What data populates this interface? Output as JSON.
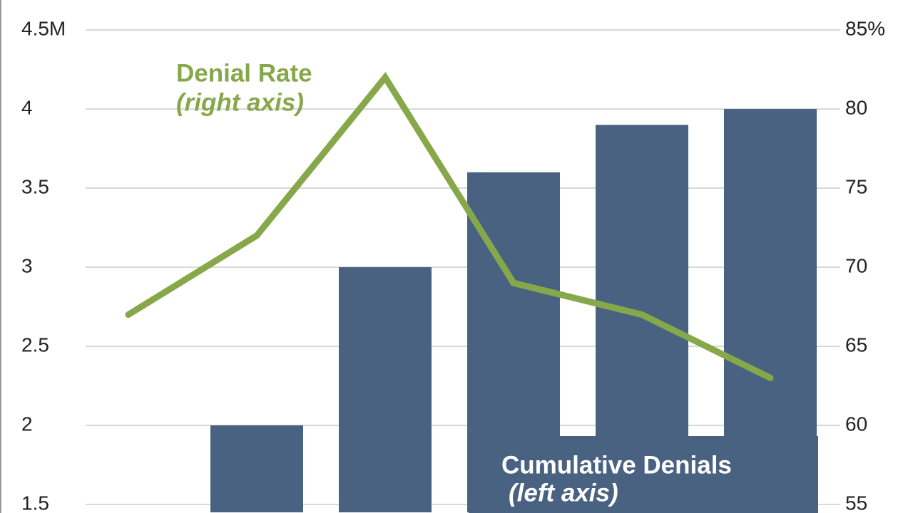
{
  "chart_data": {
    "type": "bar_line",
    "categories": [
      null,
      null,
      null,
      null,
      null,
      null
    ],
    "series": [
      {
        "name": "Cumulative Denials",
        "type": "bar",
        "color": "#4a6282",
        "axis": "y",
        "values": [
          null,
          2.0,
          3.0,
          3.6,
          3.9,
          4.0
        ]
      },
      {
        "name": "Denial Rate",
        "type": "line",
        "color": "#86a84a",
        "axis": "y2",
        "values": [
          67,
          72,
          82,
          69,
          67,
          63
        ]
      }
    ],
    "annotations": [
      "Denial Rate",
      "(right axis)",
      "Cumulative Denials",
      "(left axis)"
    ],
    "ylim": [
      1.45,
      4.7
    ],
    "yticks": [
      1.5,
      2.0,
      2.5,
      3.0,
      3.5,
      4.0,
      {
        "value": 4.5,
        "label": "4.5M"
      }
    ],
    "y2lim": [
      54.5,
      87
    ],
    "y2ticks": [
      55,
      60,
      65,
      70,
      75,
      80,
      {
        "value": 85,
        "label": "85%"
      }
    ],
    "grid": true
  }
}
